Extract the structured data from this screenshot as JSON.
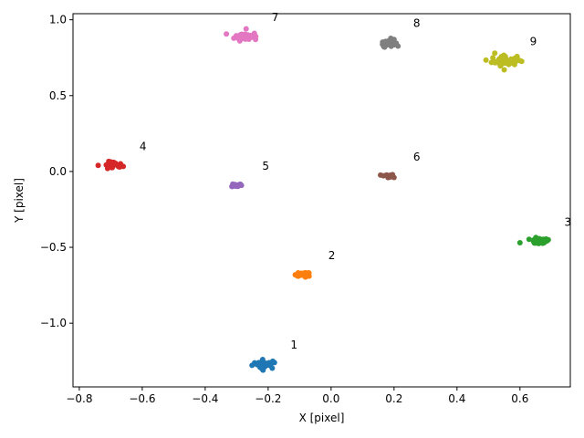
{
  "chart_data": {
    "type": "scatter",
    "xlabel": "X [pixel]",
    "ylabel": "Y [pixel]",
    "xlim": [
      -0.82,
      0.76
    ],
    "ylim": [
      -1.42,
      1.04
    ],
    "x_ticks": [
      -0.8,
      -0.6,
      -0.4,
      -0.2,
      0.0,
      0.2,
      0.4,
      0.6
    ],
    "x_tick_labels": [
      "−0.8",
      "−0.6",
      "−0.4",
      "−0.2",
      "0.0",
      "0.2",
      "0.4",
      "0.6"
    ],
    "y_ticks": [
      -1.0,
      -0.5,
      0.0,
      0.5,
      1.0
    ],
    "y_tick_labels": [
      "−1.0",
      "−0.5",
      "0.0",
      "0.5",
      "1.0"
    ],
    "grid": false,
    "series": [
      {
        "label": "1",
        "color": "#1f77b4",
        "center": [
          -0.21,
          -1.27
        ],
        "spread": [
          0.02,
          0.015
        ],
        "count": 28,
        "outliers": [
          [
            -0.22,
            -1.3
          ],
          [
            -0.18,
            -1.26
          ],
          [
            -0.23,
            -1.26
          ]
        ]
      },
      {
        "label": "2",
        "color": "#ff7f0e",
        "center": [
          -0.09,
          -0.68
        ],
        "spread": [
          0.012,
          0.008
        ],
        "count": 22,
        "outliers": [
          [
            -0.07,
            -0.69
          ],
          [
            -0.11,
            -0.68
          ]
        ]
      },
      {
        "label": "3",
        "color": "#2ca02c",
        "center": [
          0.66,
          -0.46
        ],
        "spread": [
          0.015,
          0.01
        ],
        "count": 28,
        "outliers": [
          [
            0.6,
            -0.47
          ],
          [
            0.69,
            -0.45
          ]
        ]
      },
      {
        "label": "4",
        "color": "#d62728",
        "center": [
          -0.69,
          0.04
        ],
        "spread": [
          0.014,
          0.012
        ],
        "count": 26,
        "outliers": [
          [
            -0.74,
            0.04
          ],
          [
            -0.71,
            0.02
          ]
        ]
      },
      {
        "label": "5",
        "color": "#9467bd",
        "center": [
          -0.3,
          -0.09
        ],
        "spread": [
          0.008,
          0.006
        ],
        "count": 16,
        "outliers": []
      },
      {
        "label": "6",
        "color": "#8c564b",
        "center": [
          0.18,
          -0.03
        ],
        "spread": [
          0.01,
          0.006
        ],
        "count": 18,
        "outliers": [
          [
            0.2,
            -0.04
          ]
        ]
      },
      {
        "label": "7",
        "color": "#e377c2",
        "center": [
          -0.27,
          0.89
        ],
        "spread": [
          0.018,
          0.014
        ],
        "count": 38,
        "outliers": [
          [
            -0.27,
            0.94
          ],
          [
            -0.29,
            0.86
          ],
          [
            -0.24,
            0.87
          ]
        ]
      },
      {
        "label": "8",
        "color": "#7f7f7f",
        "center": [
          0.18,
          0.85
        ],
        "spread": [
          0.012,
          0.012
        ],
        "count": 24,
        "outliers": [
          [
            0.17,
            0.82
          ],
          [
            0.2,
            0.87
          ]
        ]
      },
      {
        "label": "9",
        "color": "#bcbd22",
        "center": [
          0.55,
          0.73
        ],
        "spread": [
          0.02,
          0.016
        ],
        "count": 55,
        "outliers": [
          [
            0.55,
            0.67
          ],
          [
            0.6,
            0.73
          ],
          [
            0.52,
            0.78
          ]
        ]
      }
    ]
  }
}
